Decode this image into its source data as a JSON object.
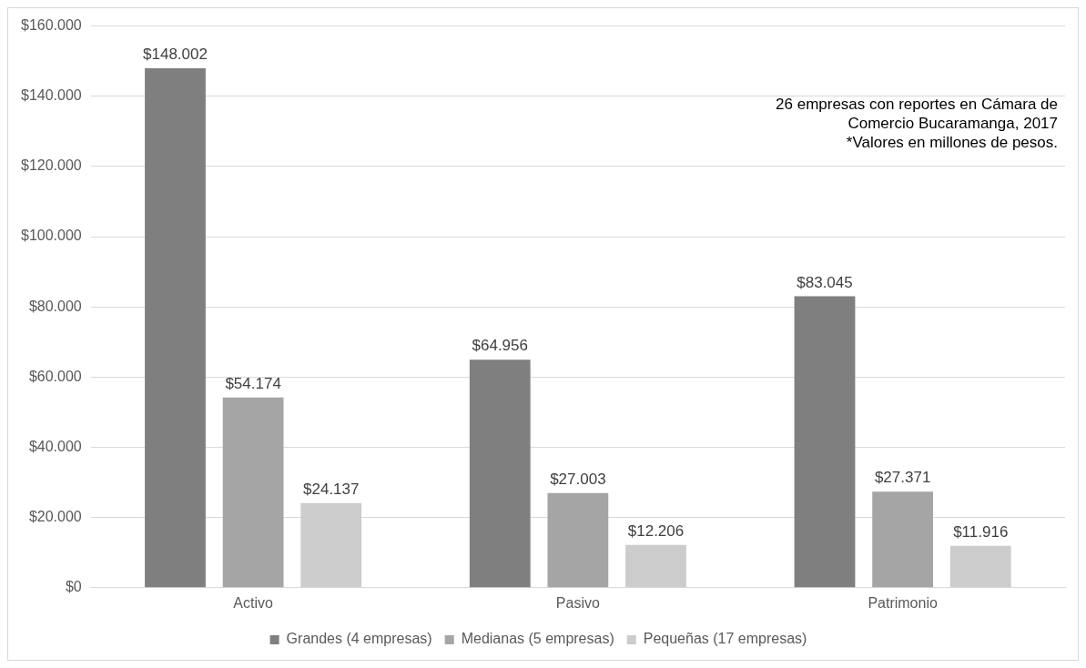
{
  "chart_data": {
    "type": "bar",
    "categories": [
      "Activo",
      "Pasivo",
      "Patrimonio"
    ],
    "series": [
      {
        "name": "Grandes (4 empresas)",
        "color": "#7f7f7f",
        "values": [
          148002,
          64956,
          83045
        ],
        "value_labels": [
          "$148.002",
          "$64.956",
          "$83.045"
        ]
      },
      {
        "name": "Medianas (5 empresas)",
        "color": "#a5a5a5",
        "values": [
          54174,
          27003,
          27371
        ],
        "value_labels": [
          "$54.174",
          "$27.003",
          "$27.371"
        ]
      },
      {
        "name": "Pequeñas (17 empresas)",
        "color": "#cccccc",
        "values": [
          24137,
          12206,
          11916
        ],
        "value_labels": [
          "$24.137",
          "$12.206",
          "$11.916"
        ]
      }
    ],
    "ylim": [
      0,
      160000
    ],
    "yticks": [
      {
        "value": 0,
        "label": "$0"
      },
      {
        "value": 20000,
        "label": "$20.000"
      },
      {
        "value": 40000,
        "label": "$40.000"
      },
      {
        "value": 60000,
        "label": "$60.000"
      },
      {
        "value": 80000,
        "label": "$80.000"
      },
      {
        "value": 100000,
        "label": "$100.000"
      },
      {
        "value": 120000,
        "label": "$120.000"
      },
      {
        "value": 140000,
        "label": "$140.000"
      },
      {
        "value": 160000,
        "label": "$160.000"
      }
    ],
    "grid": "y",
    "legend": "bottom",
    "annotations": [
      "26 empresas con reportes en Cámara de Comercio Bucaramanga, 2017",
      "*Valores en millones de pesos."
    ]
  }
}
